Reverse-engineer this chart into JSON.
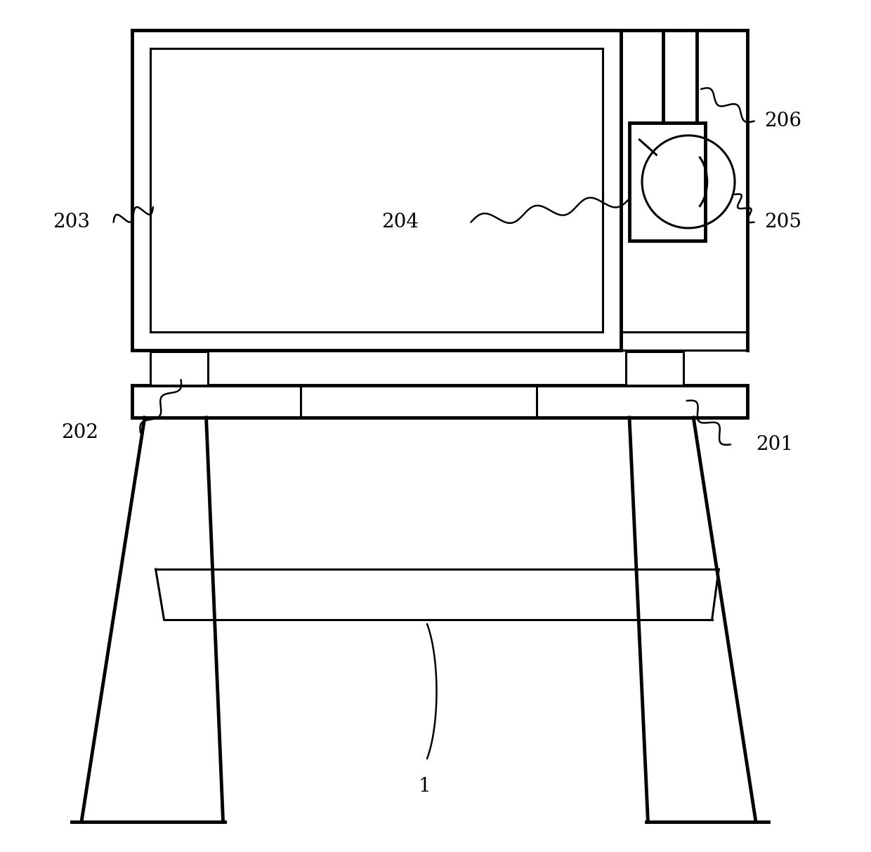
{
  "bg_color": "#ffffff",
  "line_color": "#000000",
  "lw": 2.2,
  "tlw": 3.5,
  "fig_width": 12.4,
  "fig_height": 12.14
}
